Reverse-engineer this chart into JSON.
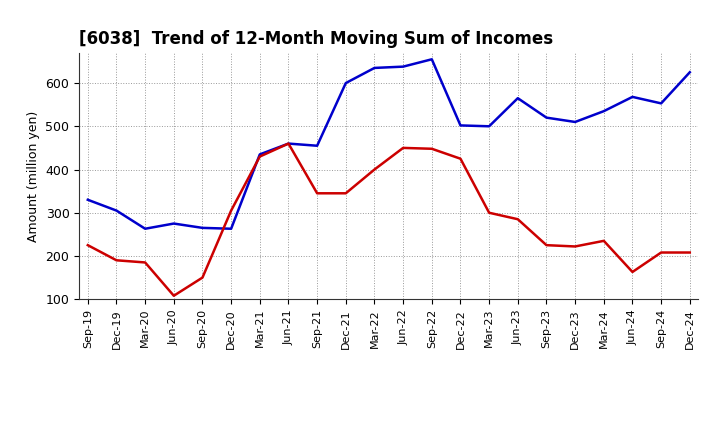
{
  "title": "[6038]  Trend of 12-Month Moving Sum of Incomes",
  "ylabel": "Amount (million yen)",
  "x_labels": [
    "Sep-19",
    "Dec-19",
    "Mar-20",
    "Jun-20",
    "Sep-20",
    "Dec-20",
    "Mar-21",
    "Jun-21",
    "Sep-21",
    "Dec-21",
    "Mar-22",
    "Jun-22",
    "Sep-22",
    "Dec-22",
    "Mar-23",
    "Jun-23",
    "Sep-23",
    "Dec-23",
    "Mar-24",
    "Jun-24",
    "Sep-24",
    "Dec-24"
  ],
  "ordinary_income": [
    330,
    305,
    263,
    275,
    265,
    263,
    435,
    460,
    455,
    600,
    635,
    638,
    655,
    502,
    500,
    565,
    520,
    510,
    535,
    568,
    553,
    625
  ],
  "net_income": [
    225,
    190,
    185,
    108,
    150,
    305,
    430,
    460,
    345,
    345,
    400,
    450,
    448,
    425,
    300,
    285,
    225,
    222,
    235,
    163,
    208,
    208
  ],
  "ylim": [
    100,
    670
  ],
  "yticks": [
    100,
    200,
    300,
    400,
    500,
    600
  ],
  "ordinary_color": "#0000cc",
  "net_color": "#cc0000",
  "line_width": 1.8,
  "background_color": "#ffffff",
  "grid_color": "#999999",
  "title_fontsize": 12,
  "tick_fontsize": 8,
  "ylabel_fontsize": 9
}
